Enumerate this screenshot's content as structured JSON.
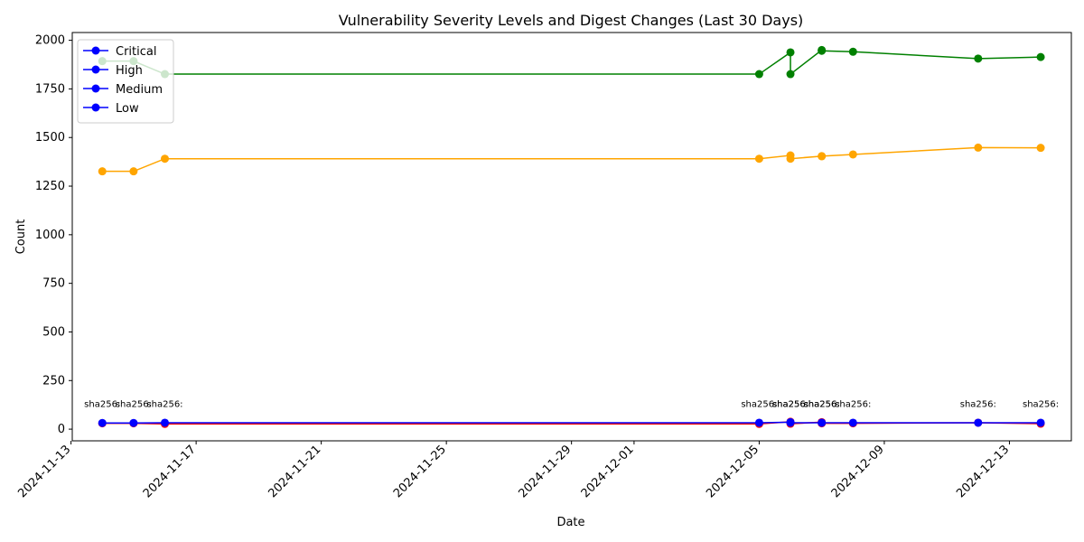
{
  "chart_data": {
    "type": "line",
    "title": "Vulnerability Severity Levels and Digest Changes (Last 30 Days)",
    "xlabel": "Date",
    "ylabel": "Count",
    "x_dates": [
      "2024-11-14",
      "2024-11-15",
      "2024-11-16",
      "2024-12-05",
      "2024-12-06",
      "2024-12-06",
      "2024-12-07",
      "2024-12-07",
      "2024-12-08",
      "2024-12-12",
      "2024-12-14"
    ],
    "xlim": [
      "2024-11-13",
      "2024-12-15"
    ],
    "ylim": [
      -60,
      2040
    ],
    "x_ticks": [
      "2024-11-13",
      "2024-11-17",
      "2024-11-21",
      "2024-11-25",
      "2024-11-29",
      "2024-12-01",
      "2024-12-05",
      "2024-12-09",
      "2024-12-13"
    ],
    "y_ticks": [
      0,
      250,
      500,
      750,
      1000,
      1250,
      1500,
      1750,
      2000
    ],
    "grid": false,
    "legend_position": "top-left",
    "legend_color": "#0000ff",
    "legend": [
      "Critical",
      "High",
      "Medium",
      "Low"
    ],
    "series": [
      {
        "name": "Critical",
        "color": "#ff0000",
        "values": [
          30,
          30,
          27,
          27,
          38,
          28,
          36,
          30,
          30,
          33,
          28
        ]
      },
      {
        "name": "High",
        "color": "#0000ff",
        "values": [
          32,
          32,
          33,
          33,
          36,
          33,
          33,
          33,
          33,
          33,
          33
        ]
      },
      {
        "name": "Medium",
        "color": "#ffa500",
        "values": [
          1326,
          1326,
          1391,
          1391,
          1408,
          1391,
          1404,
          1404,
          1413,
          1448,
          1447
        ]
      },
      {
        "name": "Low",
        "color": "#008000",
        "values": [
          1893,
          1893,
          1826,
          1826,
          1938,
          1826,
          1950,
          1946,
          1941,
          1906,
          1914
        ]
      }
    ],
    "annotations": [
      {
        "x": "2024-11-14",
        "text": "sha256:"
      },
      {
        "x": "2024-11-15",
        "text": "sha256:"
      },
      {
        "x": "2024-11-16",
        "text": "sha256:"
      },
      {
        "x": "2024-12-05",
        "text": "sha256:"
      },
      {
        "x": "2024-12-06",
        "text": "sha256:"
      },
      {
        "x": "2024-12-06",
        "text": "sha256:"
      },
      {
        "x": "2024-12-07",
        "text": "sha256:"
      },
      {
        "x": "2024-12-07",
        "text": "sha256:"
      },
      {
        "x": "2024-12-08",
        "text": "sha256:"
      },
      {
        "x": "2024-12-12",
        "text": "sha256:"
      },
      {
        "x": "2024-12-14",
        "text": "sha256:"
      }
    ],
    "annotation_y": 115
  }
}
